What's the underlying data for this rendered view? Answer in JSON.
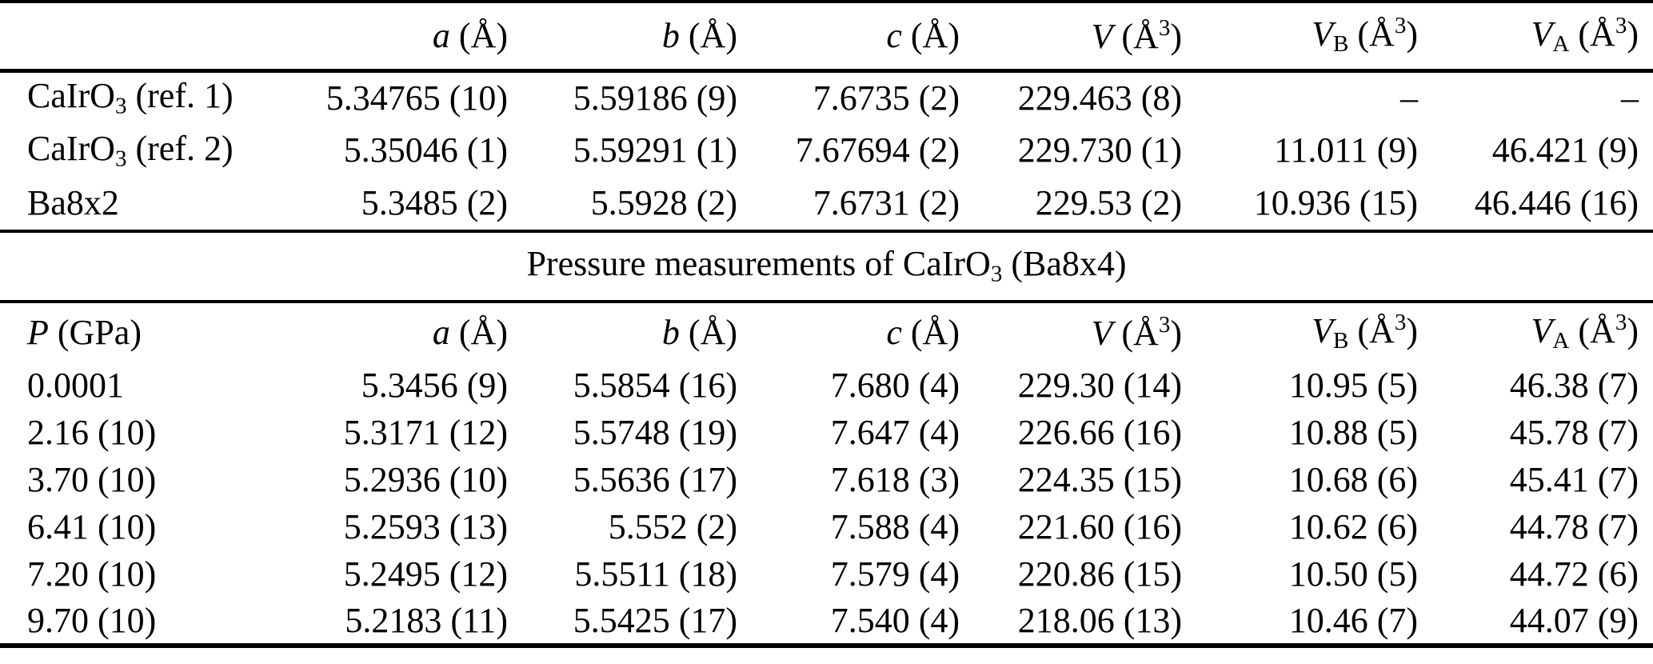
{
  "colors": {
    "background": "#ffffff",
    "text": "#000000",
    "rule": "#000000"
  },
  "table": {
    "section1": {
      "columns": [
        "",
        "*a* (Å)",
        "*b* (Å)",
        "*c* (Å)",
        "*V* (Å^3^)",
        "*V*~B~ (Å^3^)",
        "*V*~A~ (Å^3^)"
      ],
      "rows": [
        [
          "CaIrO~3~ (ref. 1)",
          "5.34765 (10)",
          "5.59186 (9)",
          "7.6735 (2)",
          "229.463 (8)",
          "–",
          "–"
        ],
        [
          "CaIrO~3~ (ref. 2)",
          "5.35046 (1)",
          "5.59291 (1)",
          "7.67694 (2)",
          "229.730 (1)",
          "11.011 (9)",
          "46.421 (9)"
        ],
        [
          "Ba8x2",
          "5.3485 (2)",
          "5.5928 (2)",
          "7.6731 (2)",
          "229.53 (2)",
          "10.936 (15)",
          "46.446 (16)"
        ]
      ]
    },
    "section_title": "Pressure measurements of CaIrO~3~ (Ba8x4)",
    "section2": {
      "columns": [
        "*P* (GPa)",
        "*a* (Å)",
        "*b* (Å)",
        "*c* (Å)",
        "*V* (Å^3^)",
        "*V*~B~ (Å^3^)",
        "*V*~A~ (Å^3^)"
      ],
      "rows": [
        [
          "0.0001",
          "5.3456 (9)",
          "5.5854 (16)",
          "7.680 (4)",
          "229.30 (14)",
          "10.95 (5)",
          "46.38 (7)"
        ],
        [
          "2.16 (10)",
          "5.3171 (12)",
          "5.5748 (19)",
          "7.647 (4)",
          "226.66 (16)",
          "10.88 (5)",
          "45.78 (7)"
        ],
        [
          "3.70 (10)",
          "5.2936 (10)",
          "5.5636 (17)",
          "7.618 (3)",
          "224.35 (15)",
          "10.68 (6)",
          "45.41 (7)"
        ],
        [
          "6.41 (10)",
          "5.2593 (13)",
          "5.552 (2)",
          "7.588 (4)",
          "221.60 (16)",
          "10.62 (6)",
          "44.78 (7)"
        ],
        [
          "7.20 (10)",
          "5.2495 (12)",
          "5.5511 (18)",
          "7.579 (4)",
          "220.86 (15)",
          "10.50 (5)",
          "44.72 (6)"
        ],
        [
          "9.70 (10)",
          "5.2183 (11)",
          "5.5425 (17)",
          "7.540 (4)",
          "218.06 (13)",
          "10.46 (7)",
          "44.07 (9)"
        ]
      ]
    }
  }
}
